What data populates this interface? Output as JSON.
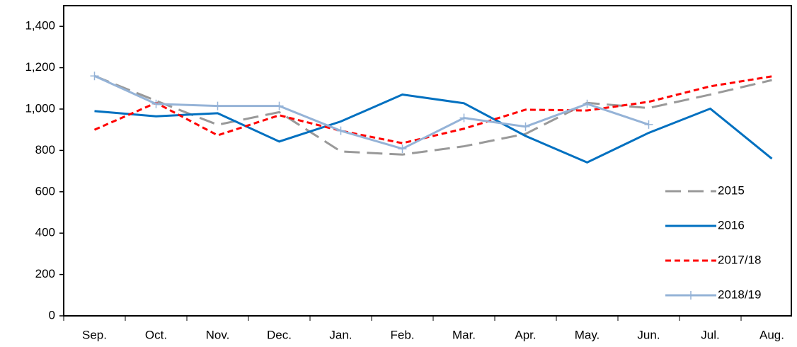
{
  "chart_data": {
    "type": "line",
    "categories": [
      "Sep.",
      "Oct.",
      "Nov.",
      "Dec.",
      "Jan.",
      "Feb.",
      "Mar.",
      "Apr.",
      "May.",
      "Jun.",
      "Jul.",
      "Aug."
    ],
    "series": [
      {
        "name": "2015",
        "color": "#999999",
        "dash": "dashed",
        "values": [
          1160,
          1040,
          924,
          985,
          795,
          780,
          820,
          880,
          1030,
          1005,
          1070,
          1140
        ]
      },
      {
        "name": "2016",
        "color": "#0070c0",
        "dash": "solid",
        "values": [
          990,
          965,
          980,
          843,
          940,
          1070,
          1028,
          870,
          742,
          885,
          1002,
          760
        ]
      },
      {
        "name": "2017/18",
        "color": "#ff0000",
        "dash": "dotted",
        "values": [
          900,
          1030,
          873,
          970,
          895,
          835,
          905,
          997,
          993,
          1035,
          1110,
          1158
        ]
      },
      {
        "name": "2018/19",
        "color": "#95b3d7",
        "dash": "solid",
        "marker": "plus",
        "values": [
          1160,
          1025,
          1015,
          1015,
          895,
          808,
          957,
          915,
          1025,
          925,
          null,
          null
        ]
      }
    ],
    "ylim": [
      0,
      1500
    ],
    "yticks": [
      0,
      200,
      400,
      600,
      800,
      {
        "value": 1000,
        "label": "1,000"
      },
      {
        "value": 1200,
        "label": "1,200"
      },
      {
        "value": 1400,
        "label": "1,400"
      }
    ],
    "legend": "lower right"
  }
}
